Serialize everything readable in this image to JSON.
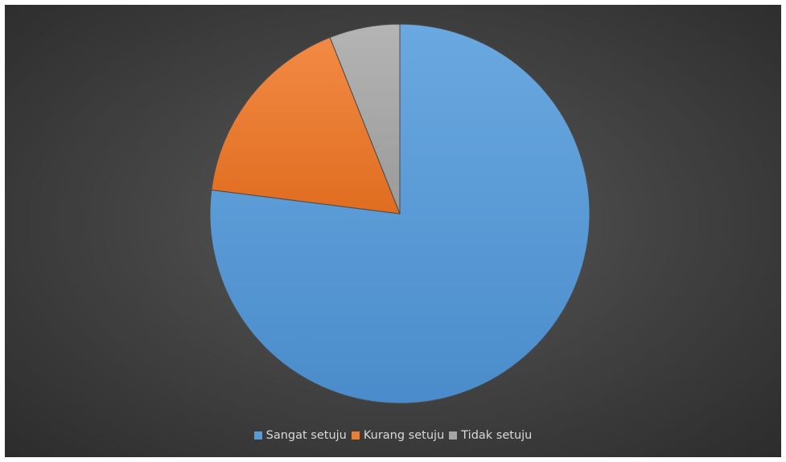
{
  "chart_data": {
    "type": "pie",
    "title": "",
    "categories": [
      "Sangat setuju",
      "Kurang setuju",
      "Tidak setuju"
    ],
    "values": [
      77,
      17,
      6
    ],
    "colors": [
      "#5B9BD5",
      "#ED7D31",
      "#A5A5A5"
    ],
    "start_angle_deg": 0,
    "direction": "clockwise",
    "legend_position": "bottom",
    "background": "#3f3f3f"
  },
  "legend": {
    "items": [
      {
        "label": "Sangat setuju",
        "color": "#5B9BD5"
      },
      {
        "label": "Kurang setuju",
        "color": "#ED7D31"
      },
      {
        "label": "Tidak setuju",
        "color": "#A5A5A5"
      }
    ]
  }
}
